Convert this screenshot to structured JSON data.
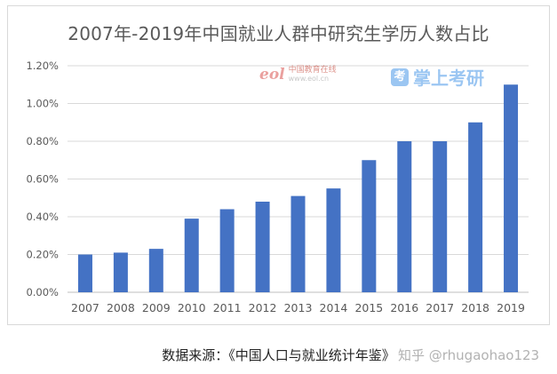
{
  "chart_data": {
    "type": "bar",
    "title": "2007年-2019年中国就业人群中研究生学历人数占比",
    "categories": [
      "2007",
      "2008",
      "2009",
      "2010",
      "2011",
      "2012",
      "2013",
      "2014",
      "2015",
      "2016",
      "2017",
      "2018",
      "2019"
    ],
    "values": [
      0.2,
      0.21,
      0.23,
      0.39,
      0.44,
      0.48,
      0.51,
      0.55,
      0.7,
      0.8,
      0.8,
      0.9,
      1.1
    ],
    "yticks": [
      "0.00%",
      "0.20%",
      "0.40%",
      "0.60%",
      "0.80%",
      "1.00%",
      "1.20%"
    ],
    "ylim": [
      0,
      1.2
    ],
    "xlabel": "",
    "ylabel": "",
    "grid": true,
    "bar_color": "#4472c4",
    "grid_color": "#d9d9d9",
    "axis_text_color": "#595959"
  },
  "source": "数据来源：《中国人口与就业统计年鉴》",
  "watermarks": {
    "eol_logo": "eol",
    "eol_name": "中国教育在线",
    "eol_url": "www.eol.cn",
    "zsky_icon": "考",
    "zsky_name": "掌上考研",
    "zhihu": "知乎 @rhugaohao123"
  }
}
